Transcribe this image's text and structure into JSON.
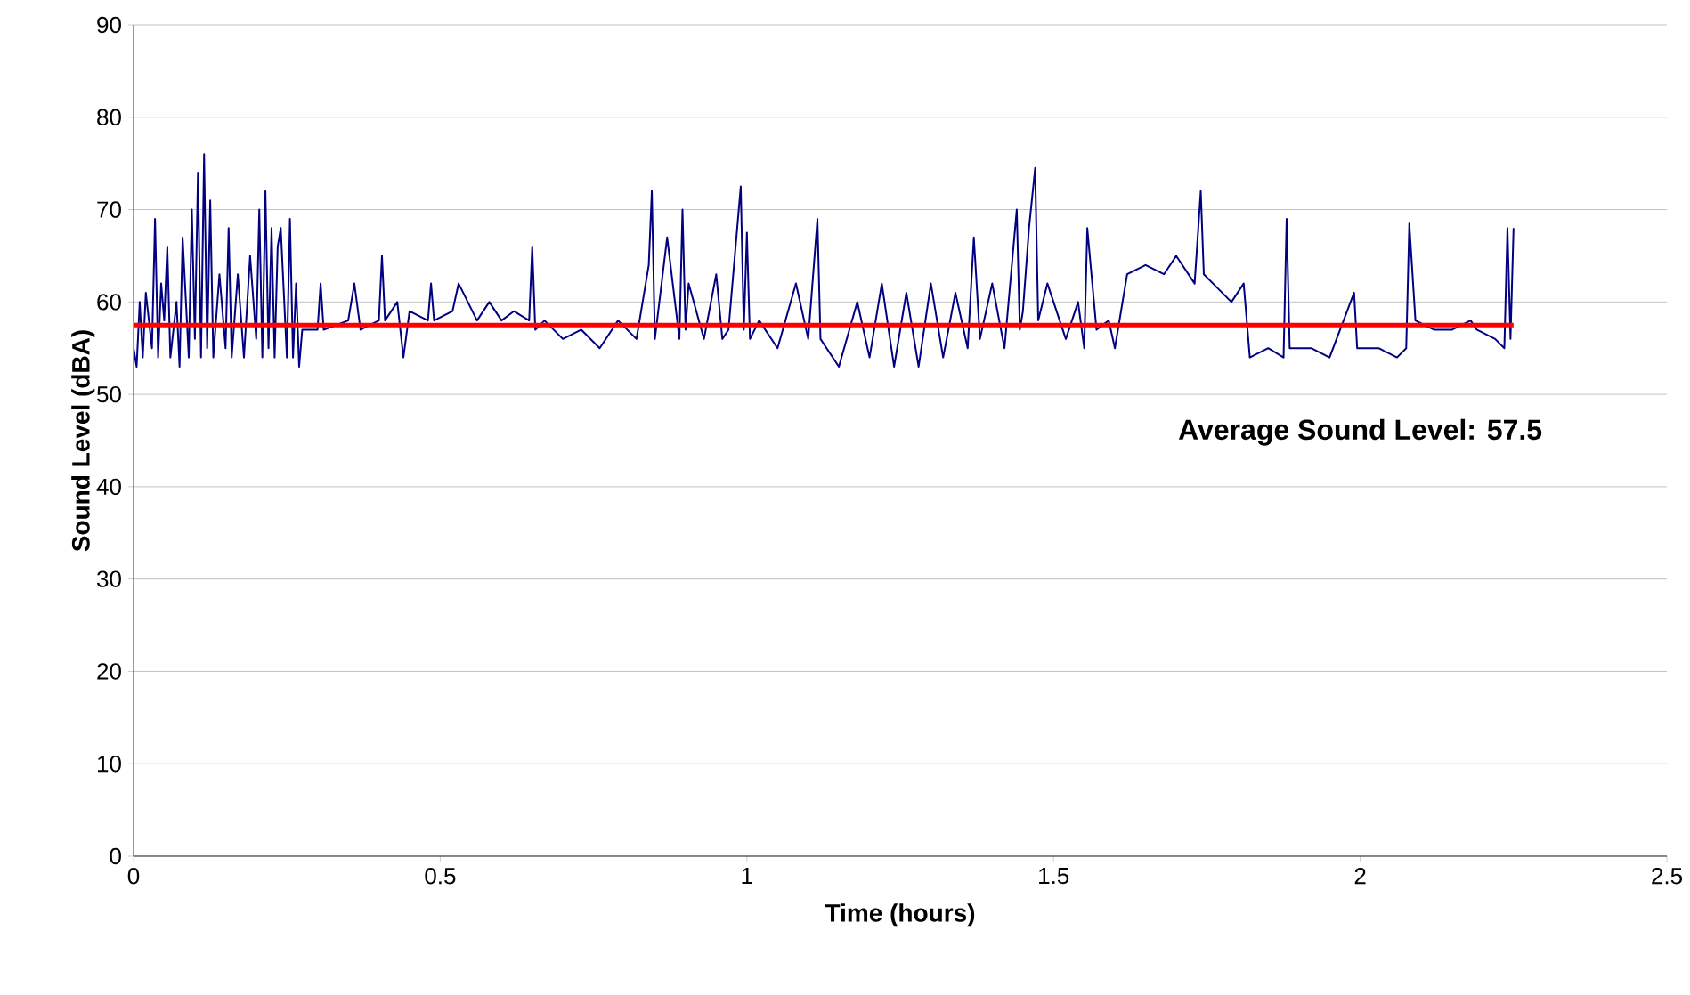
{
  "chart_data": {
    "type": "line",
    "xlabel": "Time (hours)",
    "ylabel": "Sound Level (dBA)",
    "xlim": [
      0,
      2.5
    ],
    "ylim": [
      0,
      90
    ],
    "xticks": [
      0,
      0.5,
      1,
      1.5,
      2,
      2.5
    ],
    "yticks": [
      0,
      10,
      20,
      30,
      40,
      50,
      60,
      70,
      80,
      90
    ],
    "grid": "y",
    "marker": "none",
    "line_style": "solid",
    "annotations": [
      "Average Sound Level:  57.5"
    ],
    "series": [
      {
        "color": "#000080",
        "x": [
          0,
          0.005,
          0.01,
          0.015,
          0.02,
          0.03,
          0.035,
          0.04,
          0.045,
          0.05,
          0.055,
          0.06,
          0.07,
          0.075,
          0.08,
          0.09,
          0.095,
          0.1,
          0.105,
          0.11,
          0.115,
          0.12,
          0.125,
          0.13,
          0.14,
          0.15,
          0.155,
          0.16,
          0.17,
          0.18,
          0.19,
          0.2,
          0.205,
          0.21,
          0.215,
          0.22,
          0.225,
          0.23,
          0.235,
          0.24,
          0.25,
          0.255,
          0.26,
          0.265,
          0.27,
          0.275,
          0.3,
          0.305,
          0.31,
          0.35,
          0.36,
          0.37,
          0.4,
          0.405,
          0.41,
          0.43,
          0.44,
          0.45,
          0.48,
          0.485,
          0.49,
          0.52,
          0.53,
          0.56,
          0.58,
          0.6,
          0.62,
          0.645,
          0.65,
          0.655,
          0.67,
          0.7,
          0.73,
          0.76,
          0.79,
          0.82,
          0.84,
          0.845,
          0.85,
          0.87,
          0.89,
          0.895,
          0.9,
          0.905,
          0.93,
          0.95,
          0.96,
          0.97,
          0.99,
          0.995,
          1.0,
          1.005,
          1.02,
          1.05,
          1.08,
          1.1,
          1.115,
          1.12,
          1.15,
          1.18,
          1.2,
          1.22,
          1.24,
          1.26,
          1.28,
          1.3,
          1.32,
          1.34,
          1.36,
          1.37,
          1.38,
          1.4,
          1.42,
          1.44,
          1.445,
          1.45,
          1.46,
          1.47,
          1.475,
          1.49,
          1.52,
          1.54,
          1.55,
          1.555,
          1.57,
          1.59,
          1.6,
          1.62,
          1.65,
          1.68,
          1.7,
          1.73,
          1.74,
          1.745,
          1.76,
          1.79,
          1.81,
          1.82,
          1.85,
          1.875,
          1.88,
          1.885,
          1.92,
          1.95,
          1.99,
          1.995,
          2.03,
          2.06,
          2.075,
          2.08,
          2.09,
          2.12,
          2.15,
          2.18,
          2.19,
          2.22,
          2.235,
          2.24,
          2.245,
          2.25
        ],
        "values": [
          55,
          53,
          60,
          54,
          61,
          55,
          69,
          54,
          62,
          58,
          66,
          54,
          60,
          53,
          67,
          54,
          70,
          56,
          74,
          54,
          76,
          55,
          71,
          54,
          63,
          55,
          68,
          54,
          63,
          54,
          65,
          56,
          70,
          54,
          72,
          55,
          68,
          54,
          66,
          68,
          54,
          69,
          54,
          62,
          53,
          57,
          57,
          62,
          57,
          58,
          62,
          57,
          58,
          65,
          58,
          60,
          54,
          59,
          58,
          62,
          58,
          59,
          62,
          58,
          60,
          58,
          59,
          58,
          66,
          57,
          58,
          56,
          57,
          55,
          58,
          56,
          64,
          72,
          56,
          67,
          56,
          70,
          57,
          62,
          56,
          63,
          56,
          57,
          72.5,
          57,
          67.5,
          56,
          58,
          55,
          62,
          56,
          69,
          56,
          53,
          60,
          54,
          62,
          53,
          61,
          53,
          62,
          54,
          61,
          55,
          67,
          56,
          62,
          55,
          70,
          57,
          59,
          68,
          74.5,
          58,
          62,
          56,
          60,
          55,
          68,
          57,
          58,
          55,
          63,
          64,
          63,
          65,
          62,
          72,
          63,
          62,
          60,
          62,
          54,
          55,
          54,
          69,
          55,
          55,
          54,
          61,
          55,
          55,
          54,
          55,
          68.5,
          58,
          57,
          57,
          58,
          57,
          56,
          55,
          68,
          56,
          68
        ]
      },
      {
        "color": "#ff0000",
        "x": [
          0,
          2.25
        ],
        "values": [
          57.5,
          57.5
        ]
      }
    ]
  }
}
